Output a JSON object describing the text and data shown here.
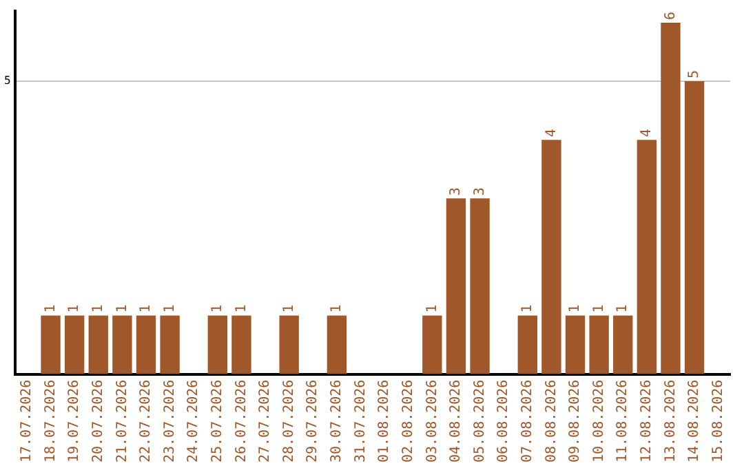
{
  "chart_data": {
    "type": "bar",
    "categories": [
      "17.07.2026",
      "18.07.2026",
      "19.07.2026",
      "20.07.2026",
      "21.07.2026",
      "22.07.2026",
      "23.07.2026",
      "24.07.2026",
      "25.07.2026",
      "26.07.2026",
      "27.07.2026",
      "28.07.2026",
      "29.07.2026",
      "30.07.2026",
      "31.07.2026",
      "01.08.2026",
      "02.08.2026",
      "03.08.2026",
      "04.08.2026",
      "05.08.2026",
      "06.08.2026",
      "07.08.2026",
      "08.08.2026",
      "09.08.2026",
      "10.08.2026",
      "11.08.2026",
      "12.08.2026",
      "13.08.2026",
      "14.08.2026",
      "15.08.2026"
    ],
    "values": [
      0,
      1,
      1,
      1,
      1,
      1,
      1,
      0,
      1,
      1,
      0,
      1,
      0,
      1,
      0,
      0,
      0,
      1,
      3,
      3,
      0,
      1,
      4,
      1,
      1,
      1,
      4,
      6,
      5,
      0
    ],
    "value_labels": [
      null,
      "1",
      "1",
      "1",
      "1",
      "1",
      "1",
      null,
      "1",
      "1",
      null,
      "1",
      null,
      "1",
      null,
      null,
      null,
      "1",
      "3",
      "3",
      null,
      "1",
      "4",
      "1",
      "1",
      "1",
      "4",
      "6",
      "5",
      null
    ],
    "color": "#a0582a",
    "ylim": [
      0,
      6.2
    ],
    "yticks": [
      5
    ],
    "grid": "y",
    "legend": false
  }
}
